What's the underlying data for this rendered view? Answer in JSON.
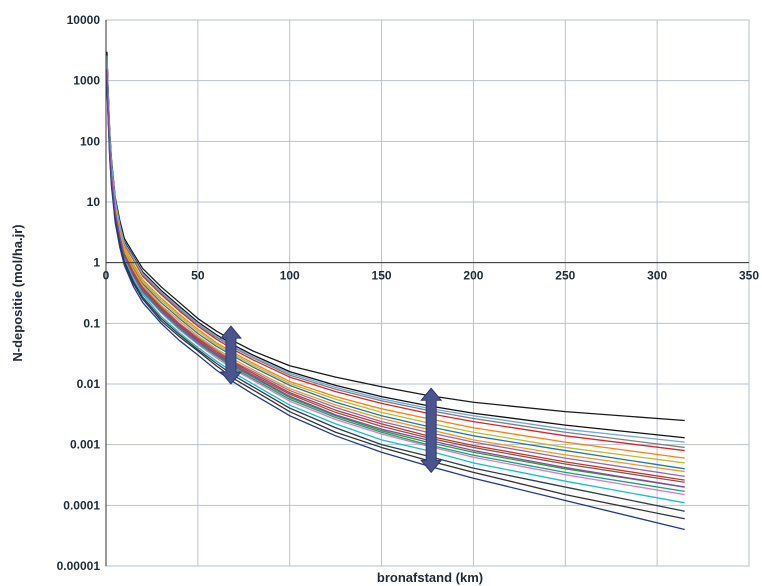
{
  "chart_data": {
    "type": "line",
    "title": "",
    "xlabel": "bronafstand (km)",
    "ylabel": "N-depositie (mol/ha.jr)",
    "xlim": [
      0,
      350
    ],
    "ylim": [
      1e-05,
      10000
    ],
    "yscale": "log",
    "grid": true,
    "legend": "none",
    "x_ticks": [
      "0",
      "50",
      "100",
      "150",
      "200",
      "250",
      "300",
      "350"
    ],
    "y_ticks": [
      "10000",
      "1000",
      "100",
      "10",
      "1",
      "0.1",
      "0.01",
      "0.001",
      "0.0001",
      "0.00001"
    ],
    "x": [
      0.5,
      1,
      2,
      3,
      5,
      7.5,
      10,
      15,
      20,
      30,
      40,
      50,
      60,
      70,
      80,
      100,
      125,
      150,
      175,
      200,
      250,
      315
    ],
    "series": [
      {
        "values": [
          3000,
          1000,
          150,
          50,
          12,
          5,
          2.5,
          1.4,
          0.8,
          0.4,
          0.22,
          0.12,
          0.075,
          0.05,
          0.035,
          0.02,
          0.013,
          0.009,
          0.0065,
          0.005,
          0.0035,
          0.0025
        ]
      },
      {
        "values": [
          2500,
          800,
          120,
          40,
          10,
          4,
          2.0,
          1.1,
          0.6,
          0.3,
          0.16,
          0.09,
          0.055,
          0.036,
          0.025,
          0.013,
          0.0075,
          0.0048,
          0.0033,
          0.0024,
          0.0014,
          0.0008
        ]
      },
      {
        "values": [
          2000,
          600,
          100,
          33,
          8,
          3.2,
          1.6,
          0.8,
          0.45,
          0.22,
          0.12,
          0.068,
          0.042,
          0.028,
          0.019,
          0.0095,
          0.005,
          0.003,
          0.002,
          0.0014,
          0.0008,
          0.0004
        ]
      },
      {
        "values": [
          1500,
          500,
          80,
          28,
          7,
          2.8,
          1.3,
          0.6,
          0.35,
          0.16,
          0.085,
          0.05,
          0.03,
          0.019,
          0.013,
          0.006,
          0.003,
          0.0017,
          0.0011,
          0.00075,
          0.0004,
          0.0002
        ]
      },
      {
        "values": [
          1000,
          350,
          60,
          20,
          5,
          2.0,
          1.0,
          0.45,
          0.25,
          0.11,
          0.06,
          0.035,
          0.02,
          0.012,
          0.008,
          0.0035,
          0.0016,
          0.0009,
          0.00055,
          0.00035,
          0.00015,
          6e-05
        ]
      },
      {
        "values": [
          2200,
          700,
          110,
          36,
          9,
          3.6,
          1.8,
          0.95,
          0.52,
          0.26,
          0.14,
          0.08,
          0.048,
          0.032,
          0.022,
          0.011,
          0.0062,
          0.0039,
          0.0027,
          0.0019,
          0.0011,
          0.0006
        ]
      },
      {
        "values": [
          1800,
          550,
          90,
          30,
          7.5,
          3.0,
          1.45,
          0.7,
          0.4,
          0.19,
          0.1,
          0.058,
          0.036,
          0.023,
          0.016,
          0.0078,
          0.0041,
          0.0024,
          0.0016,
          0.0011,
          0.0006,
          0.0003
        ]
      },
      {
        "values": [
          1200,
          400,
          70,
          24,
          6,
          2.4,
          1.15,
          0.52,
          0.3,
          0.13,
          0.07,
          0.04,
          0.024,
          0.015,
          0.01,
          0.0045,
          0.0022,
          0.0012,
          0.0008,
          0.0005,
          0.00025,
          0.00011
        ]
      },
      {
        "values": [
          2800,
          900,
          140,
          46,
          11,
          4.5,
          2.2,
          1.25,
          0.7,
          0.35,
          0.19,
          0.105,
          0.065,
          0.043,
          0.03,
          0.016,
          0.0095,
          0.0062,
          0.0044,
          0.0033,
          0.0021,
          0.0013
        ]
      },
      {
        "values": [
          1600,
          480,
          85,
          29,
          7.2,
          2.9,
          1.4,
          0.65,
          0.37,
          0.17,
          0.09,
          0.052,
          0.032,
          0.021,
          0.014,
          0.0068,
          0.0034,
          0.002,
          0.0013,
          0.0009,
          0.00048,
          0.00024
        ]
      },
      {
        "values": [
          1300,
          420,
          75,
          25,
          6.4,
          2.6,
          1.2,
          0.58,
          0.32,
          0.15,
          0.078,
          0.045,
          0.027,
          0.017,
          0.0115,
          0.0052,
          0.0026,
          0.0015,
          0.00095,
          0.00062,
          0.00032,
          0.00015
        ]
      },
      {
        "values": [
          2100,
          650,
          105,
          34,
          8.6,
          3.4,
          1.7,
          0.88,
          0.48,
          0.24,
          0.13,
          0.074,
          0.045,
          0.03,
          0.0205,
          0.0102,
          0.0056,
          0.0034,
          0.0023,
          0.0016,
          0.0009,
          0.0005
        ]
      },
      {
        "values": [
          900,
          320,
          55,
          18,
          4.6,
          1.8,
          0.9,
          0.4,
          0.22,
          0.1,
          0.052,
          0.03,
          0.017,
          0.0105,
          0.0068,
          0.003,
          0.0014,
          0.00075,
          0.00045,
          0.00028,
          0.00012,
          4e-05
        ]
      },
      {
        "values": [
          2400,
          750,
          125,
          42,
          10.5,
          4.2,
          2.05,
          1.15,
          0.64,
          0.32,
          0.17,
          0.096,
          0.059,
          0.039,
          0.027,
          0.014,
          0.0082,
          0.0053,
          0.0037,
          0.0027,
          0.0016,
          0.0009
        ]
      },
      {
        "values": [
          1700,
          520,
          88,
          29.5,
          7.4,
          2.95,
          1.42,
          0.68,
          0.38,
          0.18,
          0.095,
          0.055,
          0.034,
          0.022,
          0.015,
          0.0072,
          0.0037,
          0.0022,
          0.0014,
          0.00097,
          0.00052,
          0.00026
        ]
      },
      {
        "values": [
          1400,
          440,
          78,
          26,
          6.7,
          2.7,
          1.25,
          0.6,
          0.33,
          0.155,
          0.082,
          0.047,
          0.029,
          0.018,
          0.0122,
          0.0056,
          0.0028,
          0.0016,
          0.001,
          0.00067,
          0.00035,
          0.00017
        ]
      },
      {
        "values": [
          1900,
          580,
          95,
          32,
          8.1,
          3.2,
          1.55,
          0.76,
          0.42,
          0.2,
          0.11,
          0.062,
          0.038,
          0.025,
          0.0172,
          0.0084,
          0.0045,
          0.0027,
          0.0018,
          0.0012,
          0.00068,
          0.00036
        ]
      },
      {
        "values": [
          1100,
          380,
          65,
          22,
          5.5,
          2.2,
          1.05,
          0.48,
          0.27,
          0.12,
          0.065,
          0.037,
          0.022,
          0.0135,
          0.009,
          0.004,
          0.0019,
          0.001,
          0.00065,
          0.00041,
          0.0002,
          8e-05
        ]
      },
      {
        "values": [
          2600,
          850,
          132,
          44,
          10.8,
          4.3,
          2.1,
          1.2,
          0.66,
          0.33,
          0.18,
          0.1,
          0.062,
          0.041,
          0.028,
          0.015,
          0.0088,
          0.0057,
          0.004,
          0.003,
          0.0018,
          0.0011
        ]
      },
      {
        "values": [
          1550,
          470,
          82,
          27.5,
          6.9,
          2.75,
          1.33,
          0.62,
          0.35,
          0.165,
          0.088,
          0.05,
          0.031,
          0.0198,
          0.0133,
          0.0063,
          0.0031,
          0.0018,
          0.0012,
          0.0008,
          0.00042,
          0.0002
        ]
      }
    ],
    "series_colors": [
      "#1a1a1a",
      "#d62728",
      "#1f77b4",
      "#2ca02c",
      "#333333",
      "#ff7f0e",
      "#9467bd",
      "#17becf",
      "#111111",
      "#8c564b",
      "#e377c2",
      "#bcbd22",
      "#1f3a93",
      "#7f7f7f",
      "#c0392b",
      "#16a085",
      "#f39c12",
      "#2c3e50",
      "#6fa8dc",
      "#8e44ad"
    ],
    "annotations": [
      {
        "type": "double-arrow",
        "x": 68,
        "y_top": 0.09,
        "y_bottom": 0.01,
        "color": "#4a5590"
      },
      {
        "type": "double-arrow",
        "x": 177,
        "y_top": 0.0085,
        "y_bottom": 0.00035,
        "color": "#4a5590"
      }
    ]
  }
}
